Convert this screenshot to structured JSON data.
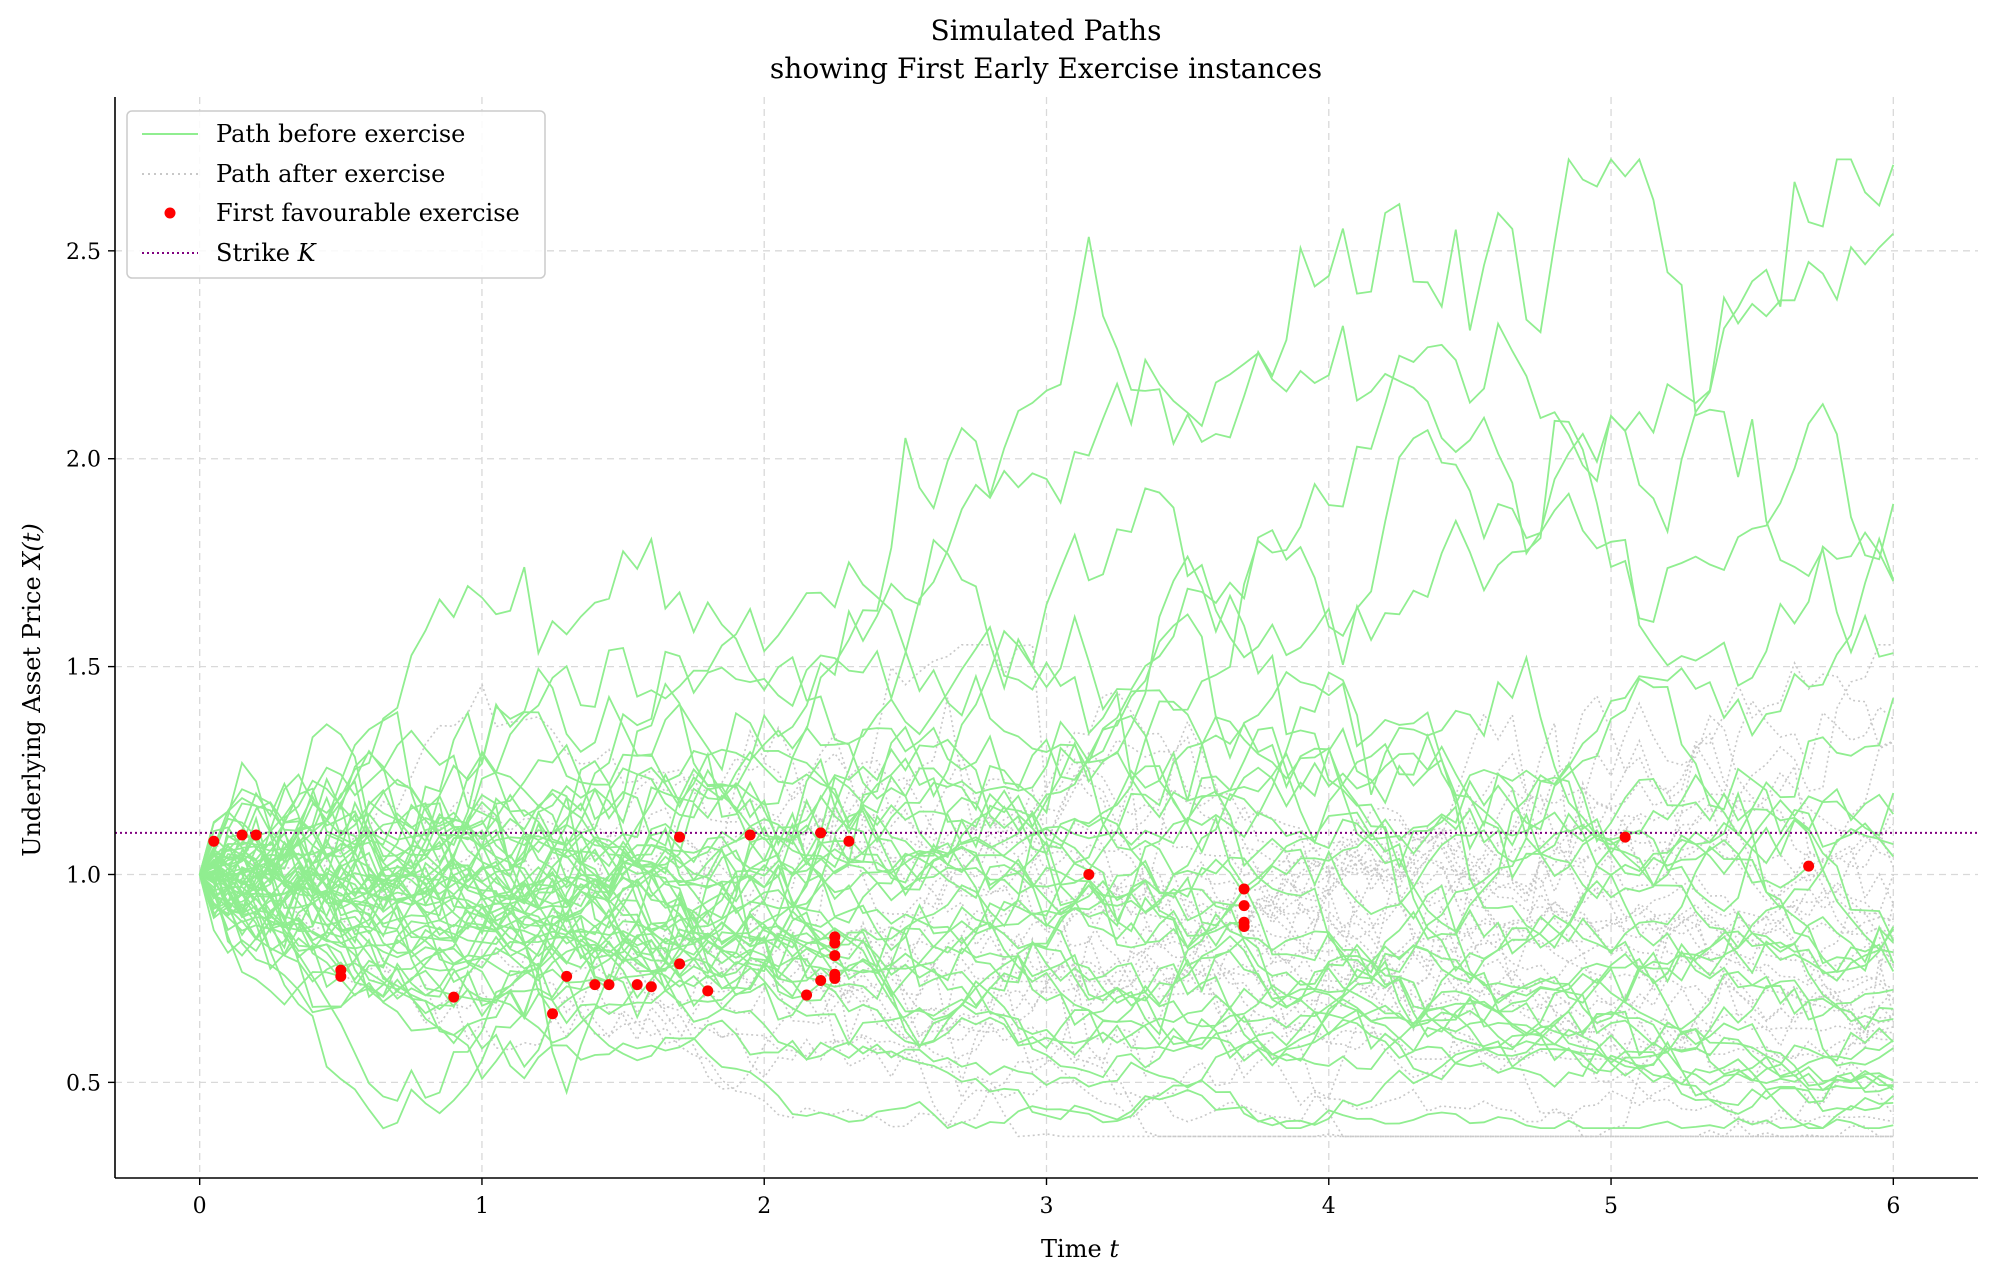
{
  "chart_data": {
    "type": "line",
    "title": "Simulated Paths",
    "subtitle": "showing First Early Exercise instances",
    "xlabel": "Time",
    "xlabel_var": "t",
    "ylabel": "Underlying Asset Price",
    "ylabel_var": "X(t)",
    "xlim": [
      -0.3,
      6.3
    ],
    "ylim": [
      0.27,
      2.87
    ],
    "x_ticks": [
      0,
      1,
      2,
      3,
      4,
      5,
      6
    ],
    "x_tick_labels": [
      "0",
      "1",
      "2",
      "3",
      "4",
      "5",
      "6"
    ],
    "y_ticks": [
      0.5,
      1.0,
      1.5,
      2.0,
      2.5
    ],
    "y_tick_labels": [
      "0.5",
      "1.0",
      "1.5",
      "2.0",
      "2.5"
    ],
    "grid": true,
    "legend_position": "top-left",
    "colors": {
      "before": "#90ee90",
      "after": "#c8c8c8",
      "exercise": "#ff0000",
      "strike": "#800080",
      "grid": "#d9d9d9"
    },
    "strike": 1.1,
    "legend": [
      {
        "label": "Path before exercise",
        "kind": "line-before"
      },
      {
        "label": "Path after exercise",
        "kind": "line-after"
      },
      {
        "label": "First favourable exercise",
        "kind": "marker"
      },
      {
        "label": "Strike",
        "var": "K",
        "kind": "line-strike"
      }
    ],
    "exercise_points": [
      [
        0.05,
        1.08
      ],
      [
        0.15,
        1.095
      ],
      [
        0.2,
        1.095
      ],
      [
        0.5,
        0.77
      ],
      [
        0.5,
        0.755
      ],
      [
        0.9,
        0.705
      ],
      [
        1.25,
        0.665
      ],
      [
        1.3,
        0.755
      ],
      [
        1.4,
        0.735
      ],
      [
        1.45,
        0.735
      ],
      [
        1.55,
        0.735
      ],
      [
        1.6,
        0.73
      ],
      [
        1.7,
        1.09
      ],
      [
        1.7,
        0.785
      ],
      [
        1.8,
        0.72
      ],
      [
        1.95,
        1.095
      ],
      [
        2.15,
        0.71
      ],
      [
        2.2,
        1.1
      ],
      [
        2.2,
        0.745
      ],
      [
        2.25,
        0.85
      ],
      [
        2.25,
        0.835
      ],
      [
        2.25,
        0.805
      ],
      [
        2.25,
        0.76
      ],
      [
        2.25,
        0.75
      ],
      [
        2.3,
        1.08
      ],
      [
        3.15,
        1.0
      ],
      [
        3.7,
        0.965
      ],
      [
        3.7,
        0.925
      ],
      [
        3.7,
        0.885
      ],
      [
        3.7,
        0.875
      ],
      [
        5.05,
        1.09
      ],
      [
        5.7,
        1.02
      ]
    ],
    "path_config": {
      "count": 64,
      "steps": 120,
      "t_max": 6,
      "x0": 1.0,
      "sigma": 0.22,
      "seed": 12345
    }
  }
}
